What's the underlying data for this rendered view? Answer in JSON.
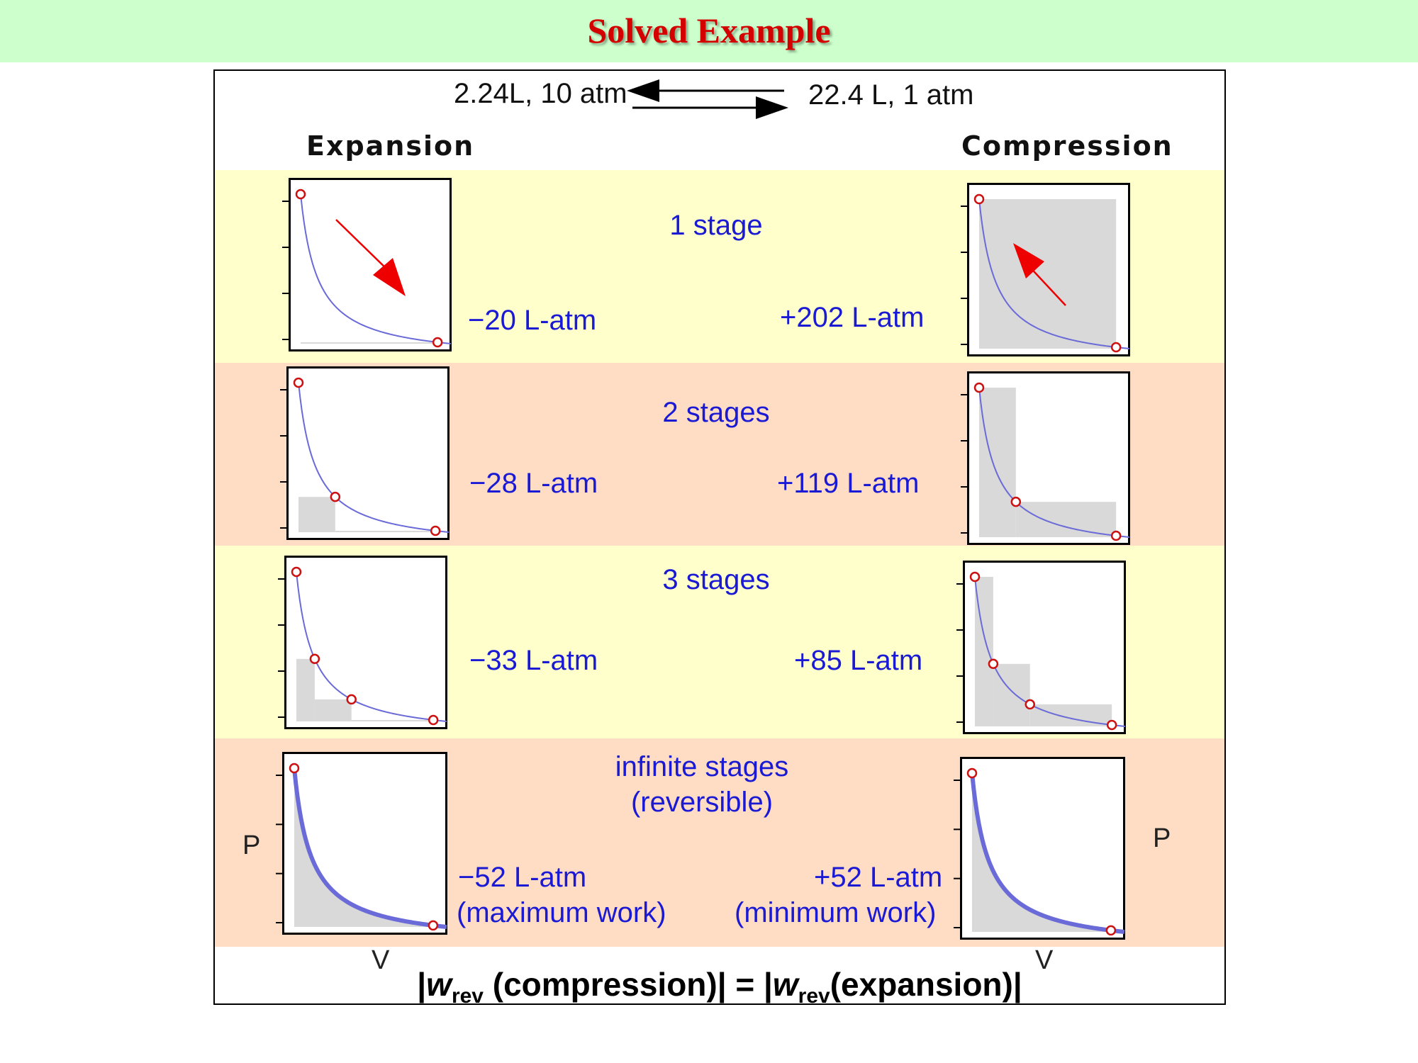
{
  "header": {
    "title": "Solved Example"
  },
  "states": {
    "left": "2.24L, 10 atm",
    "right": "22.4 L, 1 atm"
  },
  "columns": {
    "left": "Expansion",
    "right": "Compression"
  },
  "rows": [
    {
      "stage": "1 stage",
      "expansion_work": "−20 L-atm",
      "compression_work": "+202 L-atm"
    },
    {
      "stage": "2 stages",
      "expansion_work": "−28 L-atm",
      "compression_work": "+119 L-atm"
    },
    {
      "stage": "3 stages",
      "expansion_work": "−33 L-atm",
      "compression_work": "+85 L-atm"
    },
    {
      "stage": "infinite stages",
      "stage_note": "(reversible)",
      "expansion_work": "−52 L-atm",
      "expansion_note": "(maximum work)",
      "compression_work": "+52 L-atm",
      "compression_note": "(minimum work)"
    }
  ],
  "axes": {
    "y": "P",
    "x": "V"
  },
  "formula": {
    "bar1": "|",
    "w1": "w",
    "sub1": "rev",
    "mid": " (compression)| = |",
    "w2": "w",
    "sub2": "rev",
    "end": "(expansion)|"
  },
  "colors": {
    "curve": "#6a6ad8",
    "point": "#cc1111",
    "shade": "#d9d9d9",
    "arrow": "#ee0000"
  }
}
